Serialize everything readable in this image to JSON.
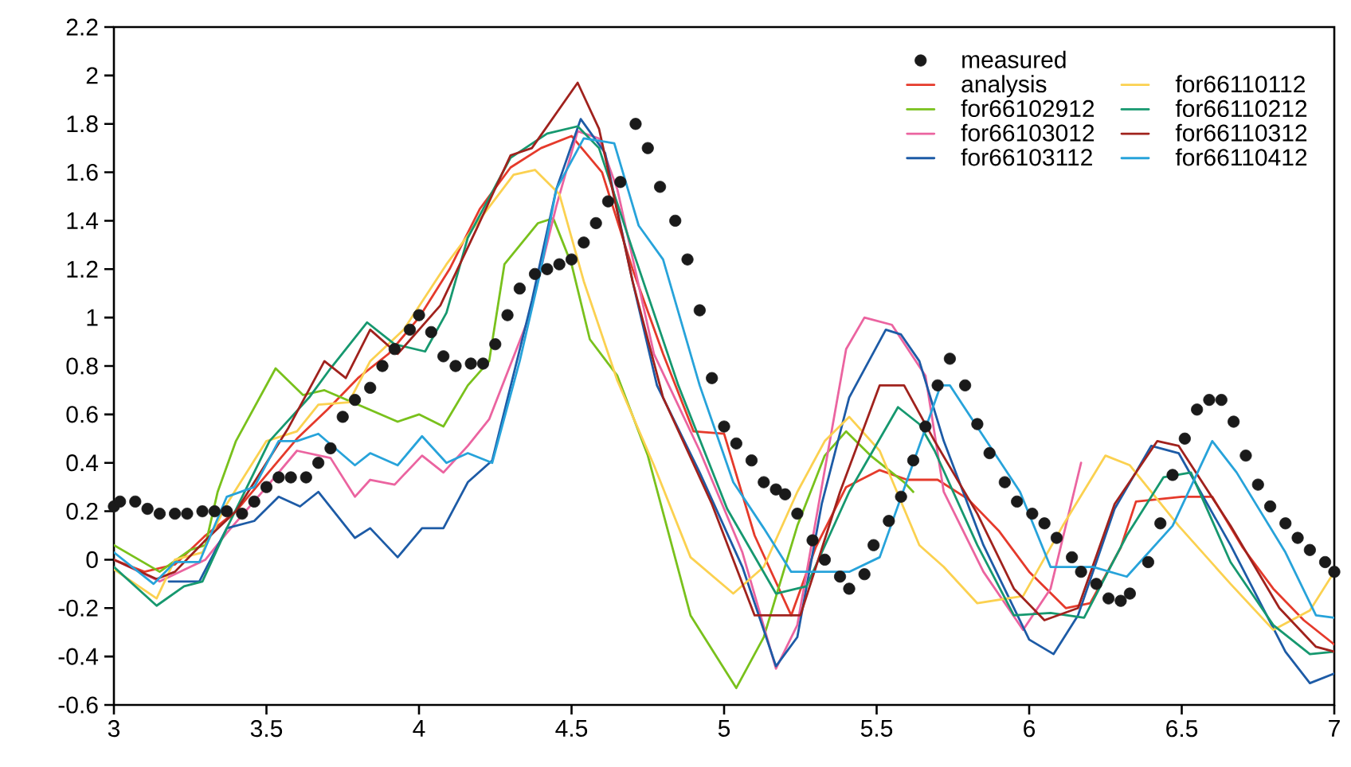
{
  "chart_data": {
    "type": "line",
    "xlim": [
      3,
      7
    ],
    "ylim": [
      -0.6,
      2.2
    ],
    "xticks": [
      3,
      3.5,
      4,
      4.5,
      5,
      5.5,
      6,
      6.5,
      7
    ],
    "yticks": [
      -0.6,
      -0.4,
      -0.2,
      0,
      0.2,
      0.4,
      0.6,
      0.8,
      1,
      1.2,
      1.4,
      1.6,
      1.8,
      2,
      2.2
    ],
    "legend": "top right",
    "line_style": "solid",
    "series": [
      {
        "name": "measured",
        "type": "scatter",
        "marker": "circle",
        "color": "#1a1a1a",
        "x": [
          3.0,
          3.02,
          3.07,
          3.11,
          3.15,
          3.2,
          3.24,
          3.29,
          3.33,
          3.37,
          3.42,
          3.46,
          3.5,
          3.54,
          3.58,
          3.63,
          3.67,
          3.71,
          3.75,
          3.79,
          3.84,
          3.88,
          3.92,
          3.97,
          4.0,
          4.04,
          4.08,
          4.12,
          4.17,
          4.21,
          4.25,
          4.29,
          4.33,
          4.38,
          4.42,
          4.46,
          4.5,
          4.54,
          4.58,
          4.62,
          4.66,
          4.71,
          4.75,
          4.79,
          4.84,
          4.88,
          4.92,
          4.96,
          5.0,
          5.04,
          5.09,
          5.13,
          5.17,
          5.2,
          5.24,
          5.29,
          5.33,
          5.38,
          5.41,
          5.46,
          5.49,
          5.54,
          5.58,
          5.62,
          5.66,
          5.7,
          5.74,
          5.79,
          5.83,
          5.87,
          5.92,
          5.96,
          6.01,
          6.05,
          6.09,
          6.14,
          6.17,
          6.22,
          6.26,
          6.3,
          6.33,
          6.39,
          6.43,
          6.47,
          6.51,
          6.55,
          6.59,
          6.63,
          6.67,
          6.71,
          6.75,
          6.79,
          6.84,
          6.88,
          6.92,
          6.97,
          7.0
        ],
        "values": [
          0.22,
          0.24,
          0.24,
          0.21,
          0.19,
          0.19,
          0.19,
          0.2,
          0.2,
          0.2,
          0.19,
          0.24,
          0.3,
          0.34,
          0.34,
          0.34,
          0.4,
          0.46,
          0.59,
          0.66,
          0.71,
          0.8,
          0.87,
          0.95,
          1.01,
          0.94,
          0.84,
          0.8,
          0.81,
          0.81,
          0.89,
          1.01,
          1.12,
          1.18,
          1.2,
          1.22,
          1.24,
          1.31,
          1.39,
          1.48,
          1.56,
          1.8,
          1.7,
          1.54,
          1.4,
          1.24,
          1.03,
          0.75,
          0.55,
          0.48,
          0.41,
          0.32,
          0.29,
          0.27,
          0.19,
          0.08,
          0,
          -0.07,
          -0.12,
          -0.06,
          0.06,
          0.16,
          0.26,
          0.41,
          0.55,
          0.72,
          0.83,
          0.72,
          0.56,
          0.44,
          0.32,
          0.24,
          0.19,
          0.15,
          0.09,
          0.01,
          -0.05,
          -0.1,
          -0.16,
          -0.17,
          -0.14,
          -0.01,
          0.15,
          0.35,
          0.5,
          0.62,
          0.66,
          0.66,
          0.57,
          0.43,
          0.31,
          0.22,
          0.15,
          0.09,
          0.04,
          -0.01,
          -0.05
        ]
      },
      {
        "name": "analysis",
        "type": "line",
        "color": "#e53a2b",
        "x": [
          3.0,
          3.1,
          3.2,
          3.3,
          3.4,
          3.5,
          3.6,
          3.7,
          3.8,
          3.9,
          4.0,
          4.1,
          4.2,
          4.3,
          4.4,
          4.5,
          4.6,
          4.7,
          4.8,
          4.9,
          5.0,
          5.1,
          5.22,
          5.3,
          5.4,
          5.51,
          5.6,
          5.7,
          5.8,
          5.9,
          6.0,
          6.12,
          6.2,
          6.3,
          6.35,
          6.5,
          6.6,
          6.7,
          6.8,
          6.9,
          7.0
        ],
        "values": [
          0.0,
          -0.05,
          -0.02,
          0.1,
          0.2,
          0.35,
          0.5,
          0.62,
          0.75,
          0.85,
          1.0,
          1.2,
          1.45,
          1.62,
          1.7,
          1.75,
          1.6,
          1.2,
          0.85,
          0.53,
          0.52,
          0.1,
          -0.23,
          0.05,
          0.3,
          0.37,
          0.33,
          0.33,
          0.25,
          0.12,
          -0.05,
          -0.2,
          -0.18,
          0.05,
          0.24,
          0.26,
          0.26,
          0.05,
          -0.12,
          -0.25,
          -0.35
        ]
      },
      {
        "name": "for66102912",
        "type": "line",
        "color": "#79c11c",
        "x": [
          3.0,
          3.15,
          3.25,
          3.3,
          3.34,
          3.4,
          3.53,
          3.62,
          3.69,
          3.93,
          4.0,
          4.08,
          4.16,
          4.23,
          4.28,
          4.39,
          4.44,
          4.5,
          4.56,
          4.65,
          4.75,
          4.89,
          5.04,
          5.13,
          5.24,
          5.33,
          5.4,
          5.48,
          5.59,
          5.62
        ],
        "values": [
          0.06,
          -0.05,
          0.04,
          0.06,
          0.28,
          0.49,
          0.79,
          0.68,
          0.7,
          0.57,
          0.6,
          0.55,
          0.72,
          0.82,
          1.22,
          1.39,
          1.41,
          1.22,
          0.91,
          0.76,
          0.43,
          -0.23,
          -0.53,
          -0.32,
          0.14,
          0.43,
          0.53,
          0.43,
          0.32,
          0.28
        ]
      },
      {
        "name": "for66103012",
        "type": "line",
        "color": "#eb64a0",
        "x": [
          3.0,
          3.15,
          3.25,
          3.3,
          3.37,
          3.5,
          3.6,
          3.71,
          3.79,
          3.84,
          3.92,
          4.01,
          4.08,
          4.16,
          4.23,
          4.36,
          4.45,
          4.52,
          4.59,
          4.65,
          4.77,
          4.92,
          5.06,
          5.17,
          5.24,
          5.4,
          5.46,
          5.55,
          5.66,
          5.72,
          5.85,
          5.98,
          6.07,
          6.17
        ],
        "values": [
          0.0,
          -0.09,
          -0.03,
          0.0,
          0.11,
          0.3,
          0.45,
          0.42,
          0.26,
          0.33,
          0.31,
          0.43,
          0.36,
          0.47,
          0.58,
          1.0,
          1.46,
          1.77,
          1.74,
          1.53,
          0.85,
          0.45,
          0.03,
          -0.45,
          -0.27,
          0.87,
          1.0,
          0.97,
          0.76,
          0.28,
          -0.05,
          -0.29,
          -0.12,
          0.4
        ]
      },
      {
        "name": "for66103112",
        "type": "line",
        "color": "#1d5ba6",
        "x": [
          3.18,
          3.28,
          3.37,
          3.46,
          3.54,
          3.61,
          3.67,
          3.79,
          3.84,
          3.93,
          4.01,
          4.08,
          4.16,
          4.24,
          4.37,
          4.45,
          4.53,
          4.61,
          4.7,
          4.78,
          4.92,
          5.06,
          5.17,
          5.24,
          5.32,
          5.41,
          5.53,
          5.58,
          5.64,
          5.72,
          5.85,
          6.0,
          6.08,
          6.16,
          6.28,
          6.4,
          6.49,
          6.66,
          6.84,
          6.92,
          7.0
        ],
        "values": [
          -0.09,
          -0.09,
          0.13,
          0.16,
          0.26,
          0.22,
          0.28,
          0.09,
          0.13,
          0.01,
          0.13,
          0.13,
          0.32,
          0.41,
          1.07,
          1.53,
          1.82,
          1.68,
          1.15,
          0.72,
          0.36,
          -0.03,
          -0.44,
          -0.32,
          0.23,
          0.67,
          0.95,
          0.93,
          0.82,
          0.49,
          0.06,
          -0.33,
          -0.39,
          -0.23,
          0.21,
          0.47,
          0.44,
          0.06,
          -0.38,
          -0.51,
          -0.47
        ]
      },
      {
        "name": "for66110112",
        "type": "line",
        "color": "#fbd150",
        "x": [
          3.0,
          3.14,
          3.2,
          3.29,
          3.37,
          3.5,
          3.6,
          3.67,
          3.77,
          3.84,
          3.95,
          4.09,
          4.19,
          4.31,
          4.38,
          4.46,
          4.54,
          4.65,
          4.77,
          4.89,
          5.03,
          5.13,
          5.24,
          5.33,
          5.41,
          5.51,
          5.64,
          5.72,
          5.83,
          5.98,
          6.11,
          6.25,
          6.33,
          6.49,
          6.66,
          6.8,
          6.92,
          7.0
        ],
        "values": [
          -0.04,
          -0.16,
          0.0,
          0.03,
          0.23,
          0.49,
          0.53,
          0.64,
          0.65,
          0.82,
          0.95,
          1.22,
          1.39,
          1.59,
          1.61,
          1.51,
          1.15,
          0.74,
          0.39,
          0.01,
          -0.14,
          -0.03,
          0.28,
          0.49,
          0.59,
          0.45,
          0.06,
          -0.03,
          -0.18,
          -0.15,
          0.14,
          0.43,
          0.39,
          0.14,
          -0.1,
          -0.29,
          -0.21,
          -0.05
        ]
      },
      {
        "name": "for66110212",
        "type": "line",
        "color": "#16986f",
        "x": [
          3.0,
          3.14,
          3.23,
          3.29,
          3.37,
          3.51,
          3.64,
          3.71,
          3.83,
          3.92,
          4.02,
          4.09,
          4.16,
          4.3,
          4.42,
          4.52,
          4.59,
          4.7,
          4.85,
          5.01,
          5.17,
          5.27,
          5.41,
          5.57,
          5.64,
          5.69,
          5.83,
          5.95,
          6.07,
          6.18,
          6.32,
          6.44,
          6.53,
          6.66,
          6.8,
          6.92,
          7.0
        ],
        "values": [
          -0.03,
          -0.19,
          -0.11,
          -0.09,
          0.13,
          0.49,
          0.67,
          0.79,
          0.98,
          0.89,
          0.86,
          1.02,
          1.33,
          1.66,
          1.76,
          1.79,
          1.7,
          1.28,
          0.72,
          0.21,
          -0.14,
          -0.11,
          0.28,
          0.63,
          0.56,
          0.45,
          0.06,
          -0.23,
          -0.22,
          -0.24,
          0.1,
          0.34,
          0.36,
          -0.01,
          -0.27,
          -0.39,
          -0.38
        ]
      },
      {
        "name": "for66110312",
        "type": "line",
        "color": "#a0221d",
        "x": [
          3.0,
          3.14,
          3.2,
          3.3,
          3.4,
          3.5,
          3.57,
          3.69,
          3.76,
          3.84,
          3.93,
          4.07,
          4.19,
          4.3,
          4.37,
          4.52,
          4.59,
          4.7,
          4.8,
          4.96,
          5.1,
          5.17,
          5.25,
          5.38,
          5.51,
          5.59,
          5.69,
          5.83,
          5.95,
          6.05,
          6.16,
          6.28,
          6.42,
          6.49,
          6.66,
          6.82,
          6.94,
          7.0
        ],
        "values": [
          0.0,
          -0.08,
          -0.05,
          0.08,
          0.2,
          0.4,
          0.54,
          0.82,
          0.75,
          0.95,
          0.85,
          1.05,
          1.37,
          1.67,
          1.7,
          1.97,
          1.78,
          1.15,
          0.67,
          0.23,
          -0.23,
          -0.23,
          -0.23,
          0.28,
          0.72,
          0.72,
          0.49,
          0.19,
          -0.12,
          -0.25,
          -0.2,
          0.23,
          0.49,
          0.47,
          0.14,
          -0.2,
          -0.36,
          -0.38
        ]
      },
      {
        "name": "for66110412",
        "type": "line",
        "color": "#27a3da",
        "x": [
          3.0,
          3.13,
          3.2,
          3.28,
          3.37,
          3.46,
          3.54,
          3.6,
          3.67,
          3.79,
          3.84,
          3.93,
          4.01,
          4.09,
          4.16,
          4.24,
          4.33,
          4.4,
          4.45,
          4.54,
          4.64,
          4.72,
          4.8,
          4.92,
          5.03,
          5.13,
          5.22,
          5.31,
          5.41,
          5.51,
          5.62,
          5.71,
          5.74,
          5.86,
          5.97,
          6.07,
          6.21,
          6.32,
          6.47,
          6.6,
          6.68,
          6.84,
          6.94,
          7.0
        ],
        "values": [
          0.03,
          -0.1,
          -0.01,
          -0.01,
          0.26,
          0.3,
          0.49,
          0.49,
          0.52,
          0.39,
          0.44,
          0.39,
          0.51,
          0.4,
          0.44,
          0.4,
          0.82,
          1.2,
          1.53,
          1.74,
          1.72,
          1.38,
          1.24,
          0.72,
          0.32,
          0.13,
          -0.05,
          -0.05,
          -0.05,
          0.01,
          0.4,
          0.72,
          0.72,
          0.49,
          0.28,
          -0.03,
          -0.03,
          -0.07,
          0.14,
          0.49,
          0.36,
          0.03,
          -0.23,
          -0.24
        ]
      }
    ]
  }
}
